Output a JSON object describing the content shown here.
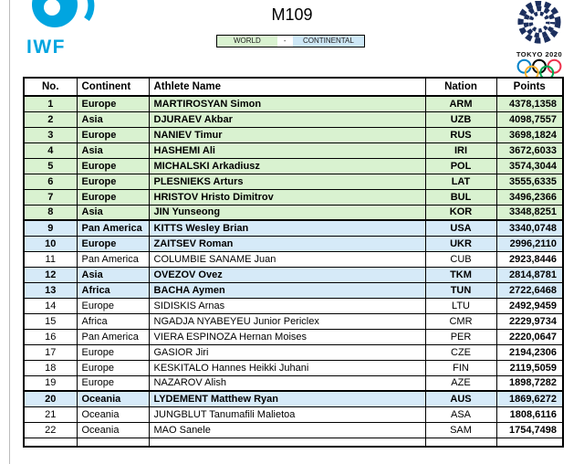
{
  "header": {
    "title": "M109",
    "iwf_label": "IWF",
    "tokyo_label": "TOKYO 2020",
    "toggle": {
      "world": "WORLD",
      "separator": "-",
      "continental": "CONTINENTAL"
    }
  },
  "colors": {
    "row_green": "#d9f2d0",
    "row_blue": "#d6eaf8",
    "toggle_blue": "#cde7f6",
    "iwf_cyan": "#00a5e0",
    "tokyo_navy": "#1c2f5e",
    "ring_blue": "#0081c8",
    "ring_yellow": "#fcb131",
    "ring_black": "#000000",
    "ring_green": "#00a651",
    "ring_red": "#ee334e"
  },
  "table": {
    "columns": [
      "No.",
      "Continent",
      "Athlete Name",
      "Nation",
      "Points"
    ],
    "rows": [
      {
        "no": "1",
        "continent": "Europe",
        "athlete": "MARTIROSYAN Simon",
        "nation": "ARM",
        "points": "4378,1358",
        "highlight": "green"
      },
      {
        "no": "2",
        "continent": "Asia",
        "athlete": "DJURAEV Akbar",
        "nation": "UZB",
        "points": "4098,7557",
        "highlight": "green"
      },
      {
        "no": "3",
        "continent": "Europe",
        "athlete": "NANIEV Timur",
        "nation": "RUS",
        "points": "3698,1824",
        "highlight": "green"
      },
      {
        "no": "4",
        "continent": "Asia",
        "athlete": "HASHEMI Ali",
        "nation": "IRI",
        "points": "3672,6033",
        "highlight": "green"
      },
      {
        "no": "5",
        "continent": "Europe",
        "athlete": "MICHALSKI Arkadiusz",
        "nation": "POL",
        "points": "3574,3044",
        "highlight": "green"
      },
      {
        "no": "6",
        "continent": "Europe",
        "athlete": "PLESNIEKS Arturs",
        "nation": "LAT",
        "points": "3555,6335",
        "highlight": "green"
      },
      {
        "no": "7",
        "continent": "Europe",
        "athlete": "HRISTOV Hristo Dimitrov",
        "nation": "BUL",
        "points": "3496,2366",
        "highlight": "green"
      },
      {
        "no": "8",
        "continent": "Asia",
        "athlete": "JIN Yunseong",
        "nation": "KOR",
        "points": "3348,8251",
        "highlight": "green"
      },
      {
        "no": "9",
        "continent": "Pan America",
        "athlete": "KITTS Wesley Brian",
        "nation": "USA",
        "points": "3340,0748",
        "highlight": "blue",
        "group_start": true
      },
      {
        "no": "10",
        "continent": "Europe",
        "athlete": "ZAITSEV Roman",
        "nation": "UKR",
        "points": "2996,2110",
        "highlight": "blue"
      },
      {
        "no": "11",
        "continent": "Pan America",
        "athlete": "COLUMBIE SANAME Juan",
        "nation": "CUB",
        "points": "2923,8446",
        "highlight": "white"
      },
      {
        "no": "12",
        "continent": "Asia",
        "athlete": "OVEZOV Ovez",
        "nation": "TKM",
        "points": "2814,8781",
        "highlight": "blue"
      },
      {
        "no": "13",
        "continent": "Africa",
        "athlete": "BACHA Aymen",
        "nation": "TUN",
        "points": "2722,6468",
        "highlight": "blue"
      },
      {
        "no": "14",
        "continent": "Europe",
        "athlete": "SIDISKIS Arnas",
        "nation": "LTU",
        "points": "2492,9459",
        "highlight": "white"
      },
      {
        "no": "15",
        "continent": "Africa",
        "athlete": "NGADJA NYABEYEU Junior Periclex",
        "nation": "CMR",
        "points": "2229,9734",
        "highlight": "white"
      },
      {
        "no": "16",
        "continent": "Pan America",
        "athlete": "VIERA ESPINOZA Hernan Moises",
        "nation": "PER",
        "points": "2220,0647",
        "highlight": "white"
      },
      {
        "no": "17",
        "continent": "Europe",
        "athlete": "GASIOR Jiri",
        "nation": "CZE",
        "points": "2194,2306",
        "highlight": "white"
      },
      {
        "no": "18",
        "continent": "Europe",
        "athlete": "KESKITALO Hannes Heikki Juhani",
        "nation": "FIN",
        "points": "2119,5059",
        "highlight": "white"
      },
      {
        "no": "19",
        "continent": "Europe",
        "athlete": "NAZAROV Alish",
        "nation": "AZE",
        "points": "1898,7282",
        "highlight": "white"
      },
      {
        "no": "20",
        "continent": "Oceania",
        "athlete": "LYDEMENT Matthew Ryan",
        "nation": "AUS",
        "points": "1869,6272",
        "highlight": "blue",
        "group_start": true
      },
      {
        "no": "21",
        "continent": "Oceania",
        "athlete": "JUNGBLUT Tanumafili Malietoa",
        "nation": "ASA",
        "points": "1808,6116",
        "highlight": "white"
      },
      {
        "no": "22",
        "continent": "Oceania",
        "athlete": "MAO Sanele",
        "nation": "SAM",
        "points": "1754,7498",
        "highlight": "white"
      }
    ]
  }
}
